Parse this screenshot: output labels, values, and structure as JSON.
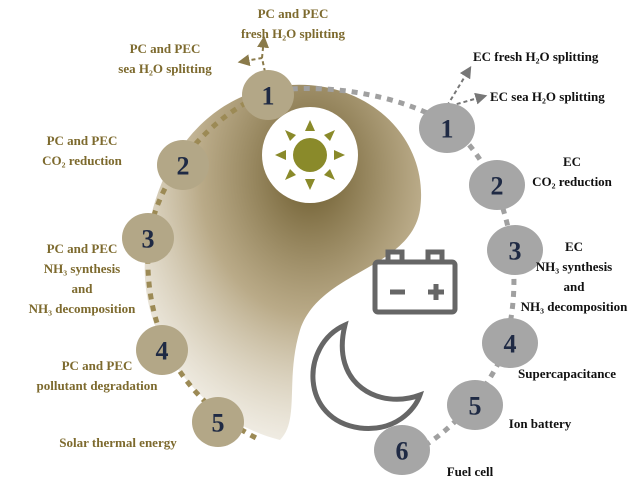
{
  "left_nodes": [
    {
      "number": "1",
      "labels": [
        {
          "lines": [
            "PC and PEC",
            "fresh H₂O splitting"
          ]
        },
        {
          "lines": [
            "PC and PEC",
            "sea H₂O splitting"
          ]
        }
      ]
    },
    {
      "number": "2",
      "labels": [
        {
          "lines": [
            "PC and PEC",
            "CO₂ reduction"
          ]
        }
      ]
    },
    {
      "number": "3",
      "labels": [
        {
          "lines": [
            "PC and PEC",
            "NH₃ synthesis",
            "and",
            "NH₃ decomposition"
          ]
        }
      ]
    },
    {
      "number": "4",
      "labels": [
        {
          "lines": [
            "PC and PEC",
            "pollutant degradation"
          ]
        }
      ]
    },
    {
      "number": "5",
      "labels": [
        {
          "lines": [
            "Solar thermal energy"
          ]
        }
      ]
    }
  ],
  "right_nodes": [
    {
      "number": "1",
      "labels": [
        {
          "lines": [
            "EC fresh H₂O splitting"
          ]
        },
        {
          "lines": [
            "EC sea H₂O splitting"
          ]
        }
      ]
    },
    {
      "number": "2",
      "labels": [
        {
          "lines": [
            "EC",
            "CO₂ reduction"
          ]
        }
      ]
    },
    {
      "number": "3",
      "labels": [
        {
          "lines": [
            "EC",
            "NH₃ synthesis",
            "and",
            "NH₃ decomposition"
          ]
        }
      ]
    },
    {
      "number": "4",
      "labels": [
        {
          "lines": [
            "Supercapacitance"
          ]
        }
      ]
    },
    {
      "number": "5",
      "labels": [
        {
          "lines": [
            "Ion battery"
          ]
        }
      ]
    },
    {
      "number": "6",
      "labels": [
        {
          "lines": [
            "Fuel cell"
          ]
        }
      ]
    }
  ]
}
